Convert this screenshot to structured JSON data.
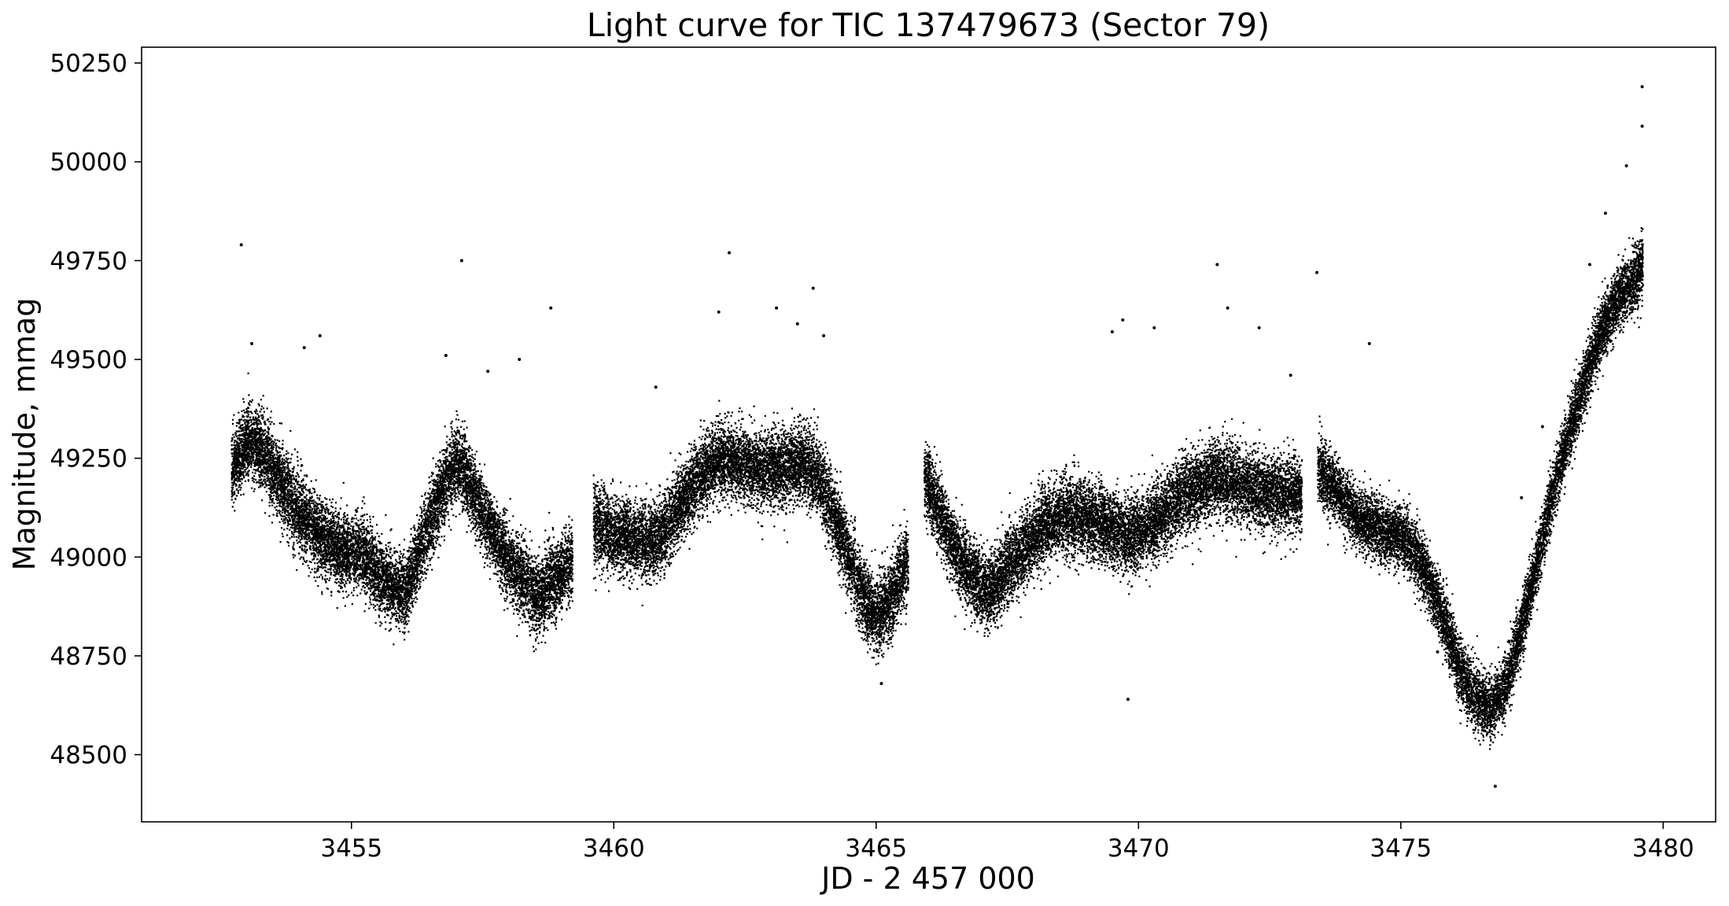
{
  "chart_data": {
    "type": "scatter",
    "title": "Light curve for TIC 137479673 (Sector 79)",
    "xlabel": "JD - 2 457 000",
    "ylabel": "Magnitude, mmag",
    "xlim": [
      3451.0,
      3481.0
    ],
    "ylim": [
      48330,
      50290
    ],
    "xticks": [
      3455,
      3460,
      3465,
      3470,
      3475,
      3480
    ],
    "yticks": [
      48500,
      48750,
      49000,
      49250,
      49500,
      49750,
      50000,
      50250
    ],
    "grid": false,
    "marker_color": "#000000",
    "segments": [
      {
        "x": [
          3452.7,
          3453.0,
          3453.3,
          3453.6,
          3454.0,
          3454.4,
          3454.8,
          3455.2,
          3455.6,
          3456.0,
          3456.4,
          3456.8,
          3457.0,
          3457.3,
          3457.7,
          3458.1,
          3458.5,
          3458.9,
          3459.2
        ],
        "y": [
          49220,
          49300,
          49270,
          49200,
          49110,
          49050,
          49020,
          49010,
          48940,
          48910,
          49060,
          49200,
          49250,
          49170,
          49050,
          48970,
          48900,
          48950,
          49000
        ],
        "scatter": 85
      },
      {
        "x": [
          3459.6,
          3460.0,
          3460.4,
          3460.8,
          3461.2,
          3461.6,
          3462.0,
          3462.4,
          3462.8,
          3463.2,
          3463.6,
          3463.9,
          3464.2,
          3464.5,
          3464.8,
          3465.0,
          3465.3,
          3465.6
        ],
        "y": [
          49090,
          49060,
          49040,
          49050,
          49120,
          49200,
          49250,
          49240,
          49220,
          49230,
          49240,
          49200,
          49100,
          48990,
          48880,
          48850,
          48900,
          49000
        ],
        "scatter": 85
      },
      {
        "x": [
          3465.9,
          3466.2,
          3466.5,
          3466.8,
          3467.1,
          3467.4,
          3467.8,
          3468.2,
          3468.6,
          3469.0,
          3469.4,
          3469.8,
          3470.2,
          3470.6,
          3471.0,
          3471.4,
          3471.8,
          3472.2,
          3472.6,
          3473.1
        ],
        "y": [
          49200,
          49110,
          49020,
          48950,
          48910,
          48960,
          49020,
          49080,
          49110,
          49100,
          49080,
          49050,
          49080,
          49130,
          49170,
          49200,
          49190,
          49170,
          49160,
          49160
        ],
        "scatter": 85
      },
      {
        "x": [
          3473.4,
          3473.8,
          3474.2,
          3474.6,
          3475.0,
          3475.4,
          3475.8,
          3476.1,
          3476.4,
          3476.7,
          3477.0,
          3477.3,
          3477.6,
          3477.9,
          3478.2,
          3478.5,
          3478.8,
          3479.1,
          3479.4,
          3479.6
        ],
        "y": [
          49230,
          49160,
          49100,
          49070,
          49060,
          48980,
          48850,
          48720,
          48650,
          48620,
          48680,
          48830,
          49000,
          49180,
          49320,
          49450,
          49570,
          49650,
          49700,
          49740
        ],
        "scatter": 70
      }
    ],
    "outliers": [
      [
        3452.9,
        49790
      ],
      [
        3453.1,
        49540
      ],
      [
        3454.1,
        49530
      ],
      [
        3454.4,
        49560
      ],
      [
        3456.8,
        49510
      ],
      [
        3457.1,
        49750
      ],
      [
        3457.6,
        49470
      ],
      [
        3458.2,
        49500
      ],
      [
        3458.8,
        49630
      ],
      [
        3460.8,
        49430
      ],
      [
        3462.0,
        49620
      ],
      [
        3462.2,
        49770
      ],
      [
        3463.1,
        49630
      ],
      [
        3463.5,
        49590
      ],
      [
        3463.8,
        49680
      ],
      [
        3464.0,
        49560
      ],
      [
        3469.5,
        49570
      ],
      [
        3469.7,
        49600
      ],
      [
        3470.3,
        49580
      ],
      [
        3471.5,
        49740
      ],
      [
        3471.7,
        49630
      ],
      [
        3472.3,
        49580
      ],
      [
        3473.4,
        49720
      ],
      [
        3474.4,
        49540
      ],
      [
        3469.8,
        48640
      ],
      [
        3465.1,
        48680
      ],
      [
        3472.9,
        49460
      ],
      [
        3475.7,
        48760
      ],
      [
        3478.6,
        49740
      ],
      [
        3478.9,
        49870
      ],
      [
        3479.6,
        50190
      ],
      [
        3479.6,
        50090
      ],
      [
        3479.3,
        49990
      ],
      [
        3476.8,
        48420
      ],
      [
        3477.3,
        49150
      ],
      [
        3477.7,
        49330
      ]
    ]
  }
}
